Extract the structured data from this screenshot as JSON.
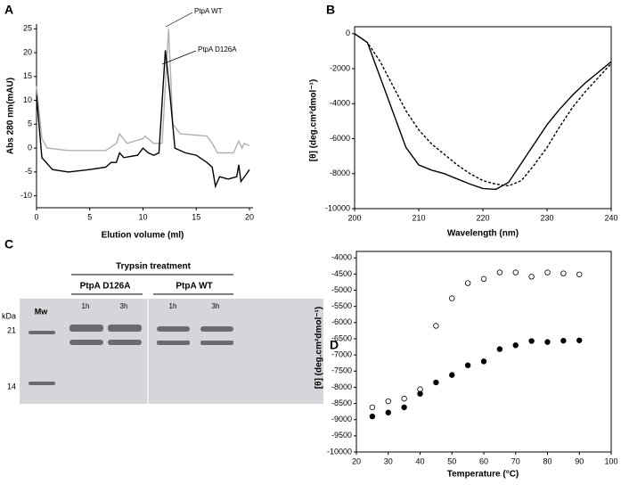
{
  "chart_data": [
    {
      "type": "line",
      "panel": "A",
      "x_label": "Elution volume (ml)",
      "y_label": "Abs 280 nm(mAU)",
      "xlim": [
        0,
        20
      ],
      "ylim": [
        -12.5,
        26
      ],
      "xticks": [
        0,
        5,
        10,
        15,
        20
      ],
      "yticks": [
        -10,
        -5,
        0,
        5,
        10,
        15,
        20,
        25
      ],
      "annotations": [
        "PtpA WT",
        "PtpA D126A"
      ],
      "series": [
        {
          "color": "#b0b0b0",
          "x": [
            0,
            0.5,
            1,
            3,
            6.5,
            7.5,
            7.8,
            8.5,
            10,
            10.2,
            11,
            11.8,
            12.4,
            12.8,
            13.5,
            16,
            16.5,
            17,
            18.5,
            19,
            19.3,
            19.5,
            20
          ],
          "values": [
            13,
            2,
            0,
            -0.5,
            -0.5,
            1,
            3,
            1,
            2,
            2.5,
            1,
            1,
            25,
            5,
            3,
            2.5,
            1,
            -1,
            -1,
            1.5,
            0,
            1,
            0.5
          ]
        },
        {
          "color": "#000000",
          "x": [
            0,
            0.5,
            1.5,
            3,
            5,
            6.5,
            7,
            7.5,
            7.8,
            8.2,
            9.5,
            10,
            10.5,
            11,
            11.5,
            12.1,
            12.5,
            13,
            14,
            15,
            16,
            16.5,
            16.8,
            17.2,
            18,
            18.8,
            19,
            19.2,
            19.7,
            20
          ],
          "values": [
            11,
            -2,
            -4.5,
            -5,
            -4.5,
            -4,
            -3,
            -3,
            -1,
            -2,
            -1.5,
            0,
            -1,
            -1.5,
            -1,
            20.5,
            12,
            0,
            -1,
            -1.5,
            -3,
            -4,
            -8,
            -6,
            -6.5,
            -6,
            -3.5,
            -7,
            -5.5,
            -4.5
          ]
        }
      ]
    },
    {
      "type": "line",
      "panel": "B",
      "x_label": "Wavelength (nm)",
      "y_label": "[θ] (deg.cm²dmol⁻¹)",
      "xlim": [
        200,
        240
      ],
      "ylim": [
        -10000,
        400
      ],
      "xticks": [
        200,
        210,
        220,
        230,
        240
      ],
      "yticks": [
        0,
        -2000,
        -4000,
        -6000,
        -8000,
        -10000
      ],
      "x": [
        200,
        202,
        204,
        206,
        208,
        210,
        212,
        214,
        216,
        218,
        220,
        222,
        224,
        226,
        228,
        230,
        232,
        234,
        236,
        238,
        240
      ],
      "series": [
        {
          "color": "#000000",
          "dashed": false,
          "values": [
            0,
            -500,
            -2500,
            -4500,
            -6500,
            -7500,
            -7800,
            -8000,
            -8300,
            -8600,
            -8850,
            -8900,
            -8500,
            -7400,
            -6300,
            -5200,
            -4300,
            -3500,
            -2800,
            -2200,
            -1600
          ]
        },
        {
          "color": "#000000",
          "dashed": true,
          "values": [
            0,
            -500,
            -1600,
            -3000,
            -4400,
            -5500,
            -6300,
            -6900,
            -7500,
            -8000,
            -8400,
            -8600,
            -8700,
            -8400,
            -7500,
            -6500,
            -5300,
            -4200,
            -3300,
            -2500,
            -1700
          ]
        }
      ]
    },
    {
      "type": "scatter",
      "panel": "D",
      "x_label": "Temperature (°C)",
      "y_label": "[θ] (deg.cm²dmol⁻¹)",
      "xlim": [
        20,
        100
      ],
      "ylim": [
        -10000,
        -3800
      ],
      "xticks": [
        20,
        30,
        40,
        50,
        60,
        70,
        80,
        90,
        100
      ],
      "yticks": [
        -4000,
        -4500,
        -5000,
        -5500,
        -6000,
        -6500,
        -7000,
        -7500,
        -8000,
        -8500,
        -9000,
        -9500,
        -10000
      ],
      "x": [
        25,
        30,
        35,
        40,
        45,
        50,
        55,
        60,
        65,
        70,
        75,
        80,
        85,
        90
      ],
      "series": [
        {
          "color": "#000000",
          "filled": false,
          "values": [
            -8620,
            -8430,
            -8350,
            -8060,
            -6100,
            -5250,
            -4780,
            -4650,
            -4450,
            -4450,
            -4580,
            -4450,
            -4480,
            -4510
          ]
        },
        {
          "color": "#000000",
          "filled": true,
          "values": [
            -8900,
            -8780,
            -8620,
            -8200,
            -7850,
            -7620,
            -7320,
            -7200,
            -6820,
            -6700,
            -6570,
            -6600,
            -6560,
            -6550
          ]
        }
      ]
    }
  ],
  "gel": {
    "panel": "C",
    "treatment": "Trypsin treatment",
    "groups": [
      "PtpA D126A",
      "PtpA WT"
    ],
    "lanes": [
      "1h",
      "3h",
      "1h",
      "3h"
    ],
    "unit": "kDa",
    "marker": "Mw",
    "sizes": [
      21,
      14
    ]
  }
}
